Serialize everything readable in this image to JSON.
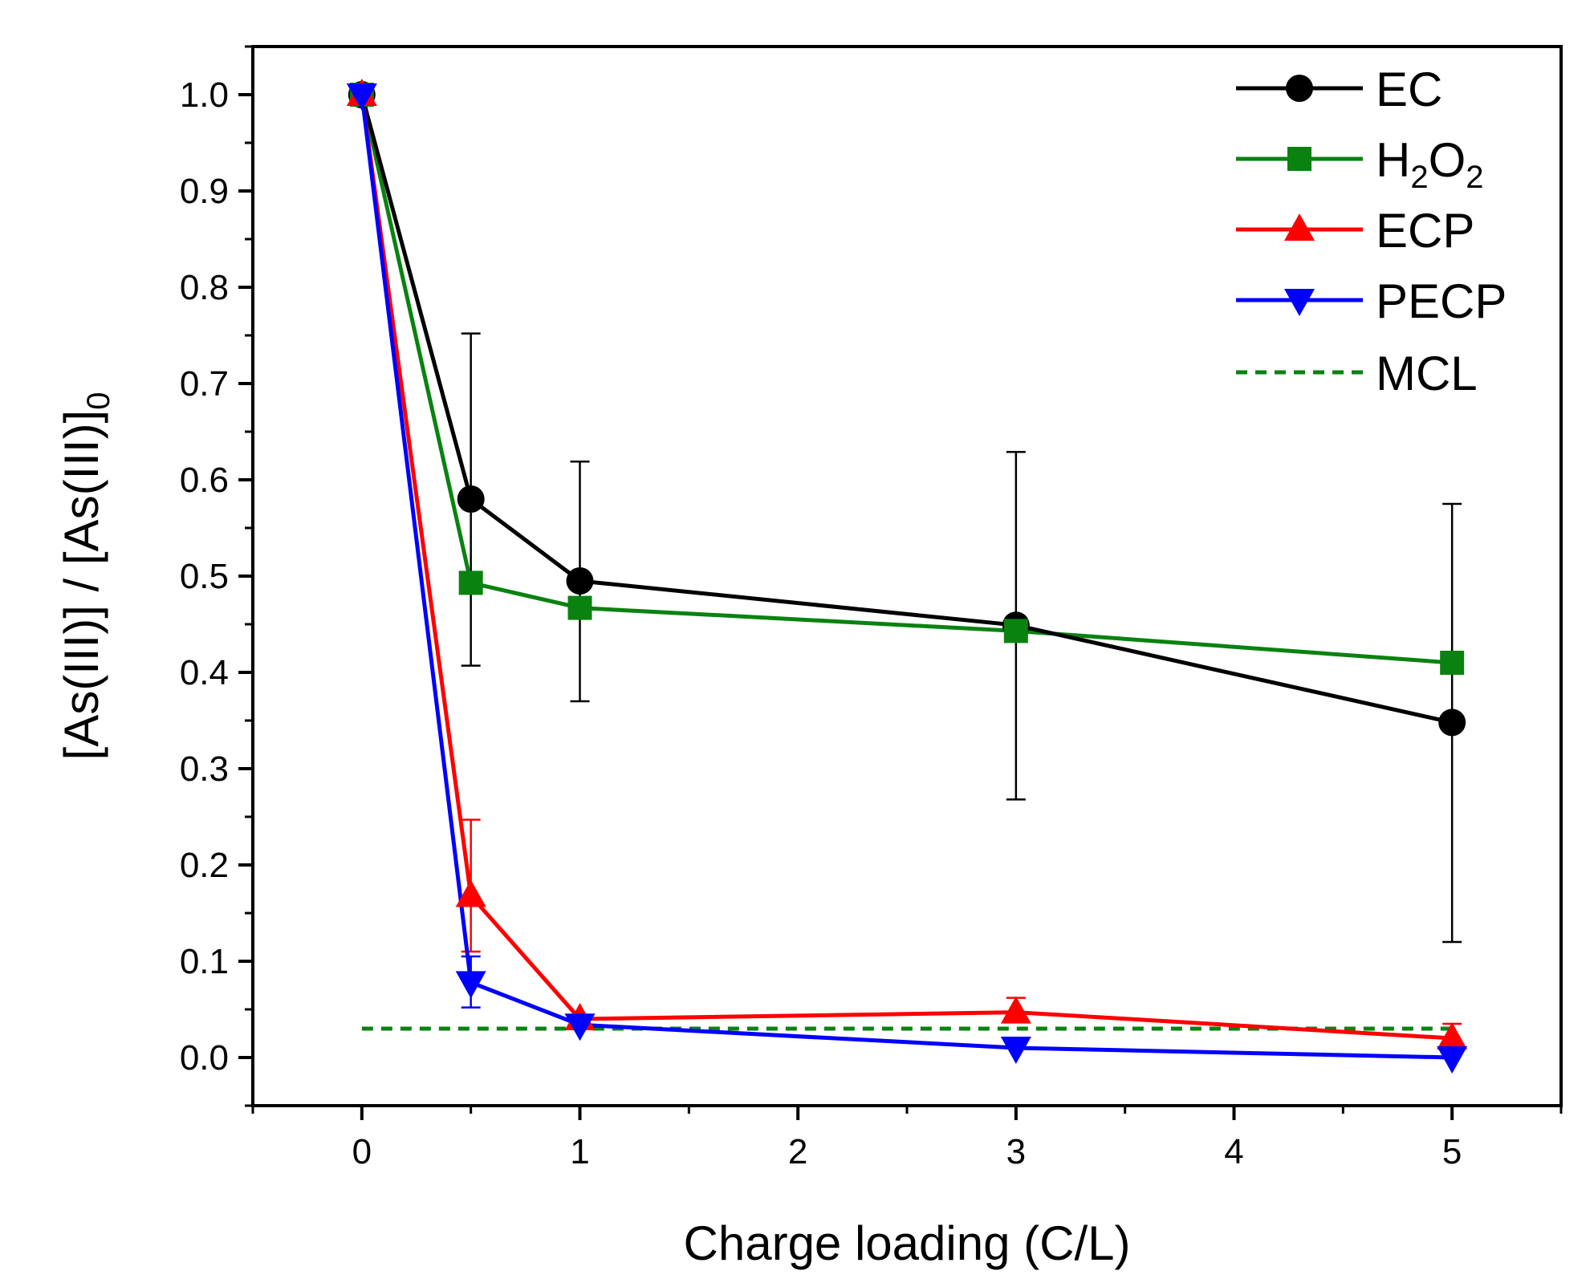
{
  "chart_data": {
    "type": "line",
    "title": "",
    "xlabel": "Charge loading (C/L)",
    "ylabel": "[As(III)] / [As(III)]",
    "ylabel_subscript": "0",
    "xlim": [
      -0.5,
      5.5
    ],
    "ylim": [
      -0.05,
      1.05
    ],
    "x_ticks": [
      0,
      1,
      2,
      3,
      4,
      5
    ],
    "x_tick_labels": [
      "0",
      "1",
      "2",
      "3",
      "4",
      "5"
    ],
    "y_ticks": [
      0.0,
      0.1,
      0.2,
      0.3,
      0.4,
      0.5,
      0.6,
      0.7,
      0.8,
      0.9,
      1.0
    ],
    "y_tick_labels": [
      "0.0",
      "0.1",
      "0.2",
      "0.3",
      "0.4",
      "0.5",
      "0.6",
      "0.7",
      "0.8",
      "0.9",
      "1.0"
    ],
    "grid": false,
    "legend_position": "top-right",
    "series": [
      {
        "name": "EC",
        "legend_label": "EC",
        "color": "#000000",
        "marker": "circle",
        "x": [
          0,
          0.5,
          1,
          3,
          5
        ],
        "values": [
          1.0,
          0.58,
          0.495,
          0.449,
          0.348
        ],
        "error_low": [
          null,
          0.407,
          0.37,
          0.268,
          0.12
        ],
        "error_high": [
          null,
          0.752,
          0.619,
          0.629,
          0.575
        ]
      },
      {
        "name": "H2O2",
        "legend_label": "H",
        "legend_sub1": "2",
        "legend_mid": "O",
        "legend_sub2": "2",
        "color": "#0a8210",
        "marker": "square",
        "x": [
          0,
          0.5,
          1,
          3,
          5
        ],
        "values": [
          1.0,
          0.493,
          0.467,
          0.443,
          0.41
        ]
      },
      {
        "name": "ECP",
        "legend_label": "ECP",
        "color": "#ff0000",
        "marker": "triangle-up",
        "x": [
          0,
          0.5,
          1,
          3,
          5
        ],
        "values": [
          1.0,
          0.168,
          0.04,
          0.047,
          0.02
        ],
        "error_low": [
          null,
          0.11,
          null,
          null,
          null
        ],
        "error_high": [
          null,
          0.247,
          null,
          0.062,
          0.035
        ]
      },
      {
        "name": "PECP",
        "legend_label": "PECP",
        "color": "#0000ff",
        "marker": "triangle-down",
        "x": [
          0,
          0.5,
          1,
          3,
          5
        ],
        "values": [
          1.0,
          0.078,
          0.034,
          0.01,
          0.0
        ],
        "error_low": [
          null,
          0.052,
          null,
          null,
          null
        ],
        "error_high": [
          null,
          0.105,
          null,
          null,
          null
        ]
      },
      {
        "name": "MCL",
        "legend_label": "MCL",
        "color": "#0a8210",
        "marker": "none",
        "style": "dashed",
        "x": [
          0,
          5
        ],
        "values": [
          0.03,
          0.03
        ]
      }
    ]
  }
}
